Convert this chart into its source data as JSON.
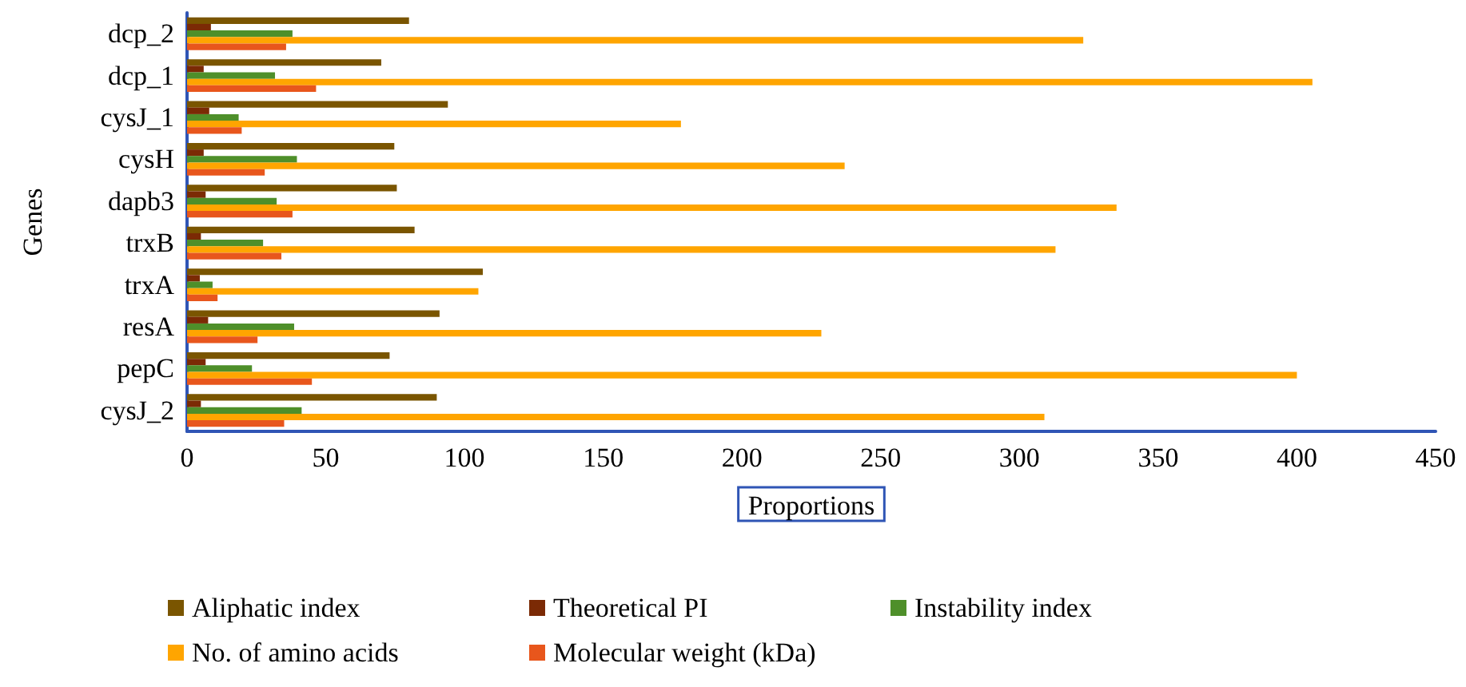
{
  "chart_data": {
    "type": "bar",
    "orientation": "horizontal",
    "xlabel": "Proportions",
    "ylabel": "Genes",
    "categories": [
      "dcp_2",
      "dcp_1",
      "cysJ_1",
      "cysH",
      "dapb3",
      "trxB",
      "trxA",
      "resA",
      "pepC",
      "cysJ_2"
    ],
    "series": [
      {
        "name": "Aliphatic index",
        "color": "#7a5500",
        "values": [
          80,
          70,
          94,
          74.7,
          75.6,
          82,
          106.6,
          91,
          73,
          90
        ]
      },
      {
        "name": "Theoretical PI",
        "color": "#7b2a05",
        "values": [
          8.6,
          6,
          8,
          6,
          6.7,
          5,
          4.6,
          7.6,
          6.7,
          5
        ]
      },
      {
        "name": "Instability index",
        "color": "#4e8f2a",
        "values": [
          38,
          31.7,
          18.6,
          39.6,
          32.3,
          27.4,
          9.2,
          38.6,
          23.4,
          41.3
        ]
      },
      {
        "name": "No. of amino acids",
        "color": "#ffa500",
        "values": [
          323,
          405.6,
          178,
          237,
          335,
          313,
          105,
          228.6,
          400,
          309
        ]
      },
      {
        "name": "Molecular weight (kDa)",
        "color": "#e8561c",
        "values": [
          35.7,
          46.5,
          19.7,
          28,
          38,
          34,
          11,
          25.4,
          45,
          35
        ]
      }
    ],
    "xlim": [
      0,
      450
    ],
    "xticks": [
      0,
      50,
      100,
      150,
      200,
      250,
      300,
      350,
      400,
      450
    ],
    "grid": false,
    "legend": "bottom"
  }
}
